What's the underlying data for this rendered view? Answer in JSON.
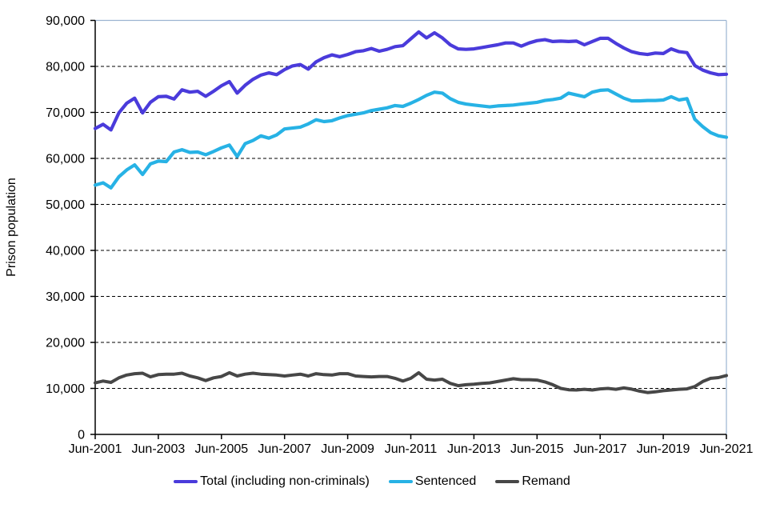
{
  "figure": {
    "y_axis_title": "Prison population",
    "legend": [
      {
        "key": "total",
        "label": "Total (including non-criminals)",
        "color": "#4a3bdb"
      },
      {
        "key": "sentenced",
        "label": "Sentenced",
        "color": "#27b2e5"
      },
      {
        "key": "remand",
        "label": "Remand",
        "color": "#474747"
      }
    ]
  },
  "chart_data": {
    "type": "line",
    "title": "",
    "xlabel": "",
    "ylabel": "Prison population",
    "ylim": [
      0,
      90000
    ],
    "grid": "horizontal-dashed-black",
    "legend_position": "bottom-center",
    "border_color": "#9bb3d1",
    "x_unit": "quarterly snapshots from Jun-2001 to Jun-2021 (81 points)",
    "y_ticks": [
      {
        "value": 0,
        "label": "0"
      },
      {
        "value": 10000,
        "label": "10,000"
      },
      {
        "value": 20000,
        "label": "20,000"
      },
      {
        "value": 30000,
        "label": "30,000"
      },
      {
        "value": 40000,
        "label": "40,000"
      },
      {
        "value": 50000,
        "label": "50,000"
      },
      {
        "value": 60000,
        "label": "60,000"
      },
      {
        "value": 70000,
        "label": "70,000"
      },
      {
        "value": 80000,
        "label": "80,000"
      },
      {
        "value": 90000,
        "label": "90,000"
      }
    ],
    "x_tick_labels": [
      "Jun-2001",
      "Jun-2003",
      "Jun-2005",
      "Jun-2007",
      "Jun-2009",
      "Jun-2011",
      "Jun-2013",
      "Jun-2015",
      "Jun-2017",
      "Jun-2019",
      "Jun-2021"
    ],
    "series": [
      {
        "name": "Total (including non-criminals)",
        "color": "#4a3bdb",
        "stroke_width": 4.2,
        "values": [
          66500,
          67400,
          66200,
          69900,
          72000,
          73100,
          69900,
          72200,
          73400,
          73500,
          72900,
          74900,
          74400,
          74600,
          73500,
          74600,
          75800,
          76700,
          74200,
          75900,
          77200,
          78100,
          78600,
          78200,
          79300,
          80100,
          80400,
          79400,
          81000,
          81900,
          82500,
          82100,
          82600,
          83200,
          83400,
          83900,
          83300,
          83700,
          84300,
          84500,
          86000,
          87500,
          86200,
          87300,
          86200,
          84700,
          83800,
          83700,
          83800,
          84100,
          84400,
          84700,
          85100,
          85100,
          84400,
          85100,
          85600,
          85800,
          85400,
          85500,
          85400,
          85500,
          84700,
          85400,
          86100,
          86100,
          85000,
          84000,
          83200,
          82800,
          82600,
          82900,
          82800,
          83800,
          83200,
          83000,
          80200,
          79200,
          78600,
          78200,
          78300
        ]
      },
      {
        "name": "Sentenced",
        "color": "#27b2e5",
        "stroke_width": 4.2,
        "values": [
          54200,
          54700,
          53600,
          56000,
          57500,
          58600,
          56500,
          58800,
          59400,
          59300,
          61400,
          61900,
          61300,
          61400,
          60800,
          61500,
          62300,
          62900,
          60400,
          63200,
          63900,
          64900,
          64400,
          65100,
          66400,
          66600,
          66800,
          67500,
          68400,
          68000,
          68200,
          68800,
          69300,
          69600,
          69900,
          70400,
          70700,
          71000,
          71500,
          71300,
          72000,
          72800,
          73700,
          74400,
          74200,
          73000,
          72200,
          71800,
          71600,
          71400,
          71200,
          71400,
          71500,
          71600,
          71800,
          72000,
          72200,
          72600,
          72800,
          73100,
          74200,
          73800,
          73400,
          74400,
          74800,
          74900,
          74000,
          73100,
          72500,
          72500,
          72600,
          72600,
          72700,
          73400,
          72700,
          73000,
          68500,
          66900,
          65600,
          64900,
          64600
        ]
      },
      {
        "name": "Remand",
        "color": "#474747",
        "stroke_width": 4.0,
        "values": [
          11200,
          11600,
          11300,
          12300,
          12900,
          13200,
          13300,
          12500,
          13000,
          13100,
          13100,
          13300,
          12700,
          12300,
          11700,
          12300,
          12600,
          13400,
          12700,
          13100,
          13300,
          13100,
          13000,
          12900,
          12700,
          12900,
          13100,
          12700,
          13200,
          13000,
          12900,
          13200,
          13200,
          12700,
          12600,
          12500,
          12600,
          12600,
          12200,
          11600,
          12200,
          13400,
          12000,
          11800,
          12000,
          11100,
          10600,
          10800,
          10900,
          11100,
          11200,
          11500,
          11800,
          12100,
          11900,
          11900,
          11800,
          11400,
          10800,
          10000,
          9700,
          9650,
          9800,
          9650,
          9900,
          10000,
          9800,
          10100,
          9850,
          9400,
          9100,
          9250,
          9500,
          9650,
          9800,
          9900,
          10400,
          11500,
          12200,
          12350,
          12800
        ]
      }
    ]
  }
}
